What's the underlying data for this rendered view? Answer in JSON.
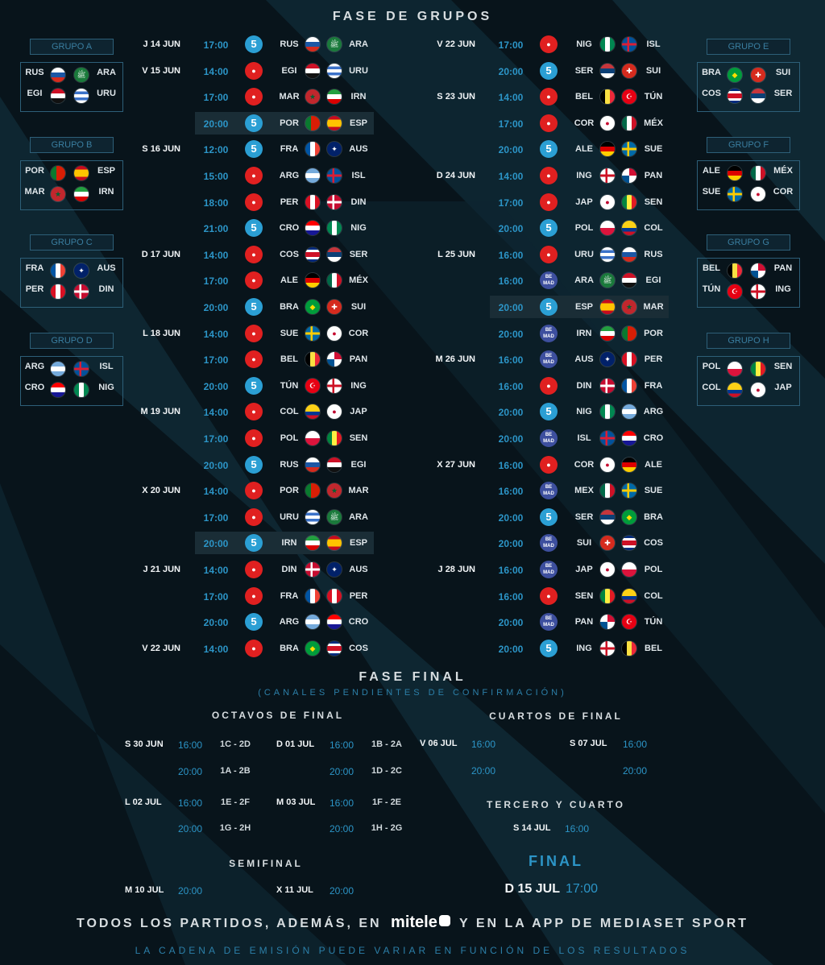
{
  "titles": {
    "group_stage": "FASE DE GRUPOS",
    "final_stage": "FASE FINAL",
    "final_note": "(CANALES PENDIENTES DE CONFIRMACIÓN)",
    "octavos": "OCTAVOS DE FINAL",
    "cuartos": "CUARTOS DE FINAL",
    "tercero": "TERCERO Y CUARTO",
    "semifinal": "SEMIFINAL",
    "final": "FINAL"
  },
  "footer": {
    "main_before": "TODOS LOS PARTIDOS, ADEMÁS, EN",
    "logo": "mitele",
    "main_after": "Y EN LA APP DE MEDIASET SPORT",
    "note": "LA CADENA DE EMISIÓN PUEDE VARIAR EN FUNCIÓN DE LOS RESULTADOS"
  },
  "channels": {
    "c5": "5",
    "cu": "●",
    "cd": "BE MAD"
  },
  "colors": {
    "accent": "#2c95c7",
    "channel_5": "#2b9fd4",
    "channel_cuatro": "#e02020",
    "channel_bemad": "#3d4f9e"
  },
  "groups": [
    {
      "label": "GRUPO A",
      "teams": [
        [
          "RUS",
          "ARA"
        ],
        [
          "EGI",
          "URU"
        ]
      ]
    },
    {
      "label": "GRUPO B",
      "teams": [
        [
          "POR",
          "ESP"
        ],
        [
          "MAR",
          "IRN"
        ]
      ]
    },
    {
      "label": "GRUPO C",
      "teams": [
        [
          "FRA",
          "AUS"
        ],
        [
          "PER",
          "DIN"
        ]
      ]
    },
    {
      "label": "GRUPO D",
      "teams": [
        [
          "ARG",
          "ISL"
        ],
        [
          "CRO",
          "NIG"
        ]
      ]
    },
    {
      "label": "GRUPO E",
      "teams": [
        [
          "BRA",
          "SUI"
        ],
        [
          "COS",
          "SER"
        ]
      ]
    },
    {
      "label": "GRUPO F",
      "teams": [
        [
          "ALE",
          "MÉX"
        ],
        [
          "SUE",
          "COR"
        ]
      ]
    },
    {
      "label": "GRUPO G",
      "teams": [
        [
          "BEL",
          "PAN"
        ],
        [
          "TÚN",
          "ING"
        ]
      ]
    },
    {
      "label": "GRUPO H",
      "teams": [
        [
          "POL",
          "SEN"
        ],
        [
          "COL",
          "JAP"
        ]
      ]
    }
  ],
  "matches_left": [
    {
      "day": "J 14 JUN",
      "time": "17:00",
      "ch": "c5",
      "home": "RUS",
      "away": "ARA",
      "hl": false
    },
    {
      "day": "V 15 JUN",
      "time": "14:00",
      "ch": "cu",
      "home": "EGI",
      "away": "URU",
      "hl": false
    },
    {
      "day": "",
      "time": "17:00",
      "ch": "cu",
      "home": "MAR",
      "away": "IRN",
      "hl": false
    },
    {
      "day": "",
      "time": "20:00",
      "ch": "c5",
      "home": "POR",
      "away": "ESP",
      "hl": true
    },
    {
      "day": "S 16 JUN",
      "time": "12:00",
      "ch": "c5",
      "home": "FRA",
      "away": "AUS",
      "hl": false
    },
    {
      "day": "",
      "time": "15:00",
      "ch": "cu",
      "home": "ARG",
      "away": "ISL",
      "hl": false
    },
    {
      "day": "",
      "time": "18:00",
      "ch": "cu",
      "home": "PER",
      "away": "DIN",
      "hl": false
    },
    {
      "day": "",
      "time": "21:00",
      "ch": "c5",
      "home": "CRO",
      "away": "NIG",
      "hl": false
    },
    {
      "day": "D 17 JUN",
      "time": "14:00",
      "ch": "cu",
      "home": "COS",
      "away": "SER",
      "hl": false
    },
    {
      "day": "",
      "time": "17:00",
      "ch": "cu",
      "home": "ALE",
      "away": "MÉX",
      "hl": false
    },
    {
      "day": "",
      "time": "20:00",
      "ch": "c5",
      "home": "BRA",
      "away": "SUI",
      "hl": false
    },
    {
      "day": "L 18 JUN",
      "time": "14:00",
      "ch": "cu",
      "home": "SUE",
      "away": "COR",
      "hl": false
    },
    {
      "day": "",
      "time": "17:00",
      "ch": "cu",
      "home": "BEL",
      "away": "PAN",
      "hl": false
    },
    {
      "day": "",
      "time": "20:00",
      "ch": "c5",
      "home": "TÚN",
      "away": "ING",
      "hl": false
    },
    {
      "day": "M 19 JUN",
      "time": "14:00",
      "ch": "cu",
      "home": "COL",
      "away": "JAP",
      "hl": false
    },
    {
      "day": "",
      "time": "17:00",
      "ch": "cu",
      "home": "POL",
      "away": "SEN",
      "hl": false
    },
    {
      "day": "",
      "time": "20:00",
      "ch": "c5",
      "home": "RUS",
      "away": "EGI",
      "hl": false
    },
    {
      "day": "X 20 JUN",
      "time": "14:00",
      "ch": "cu",
      "home": "POR",
      "away": "MAR",
      "hl": false
    },
    {
      "day": "",
      "time": "17:00",
      "ch": "cu",
      "home": "URU",
      "away": "ARA",
      "hl": false
    },
    {
      "day": "",
      "time": "20:00",
      "ch": "c5",
      "home": "IRN",
      "away": "ESP",
      "hl": true
    },
    {
      "day": "J 21 JUN",
      "time": "14:00",
      "ch": "cu",
      "home": "DIN",
      "away": "AUS",
      "hl": false
    },
    {
      "day": "",
      "time": "17:00",
      "ch": "cu",
      "home": "FRA",
      "away": "PER",
      "hl": false
    },
    {
      "day": "",
      "time": "20:00",
      "ch": "c5",
      "home": "ARG",
      "away": "CRO",
      "hl": false
    },
    {
      "day": "V 22 JUN",
      "time": "14:00",
      "ch": "cu",
      "home": "BRA",
      "away": "COS",
      "hl": false
    }
  ],
  "matches_right": [
    {
      "day": "V 22 JUN",
      "time": "17:00",
      "ch": "cu",
      "home": "NIG",
      "away": "ISL",
      "hl": false
    },
    {
      "day": "",
      "time": "20:00",
      "ch": "c5",
      "home": "SER",
      "away": "SUI",
      "hl": false
    },
    {
      "day": "S 23 JUN",
      "time": "14:00",
      "ch": "cu",
      "home": "BEL",
      "away": "TÚN",
      "hl": false
    },
    {
      "day": "",
      "time": "17:00",
      "ch": "cu",
      "home": "COR",
      "away": "MÉX",
      "hl": false
    },
    {
      "day": "",
      "time": "20:00",
      "ch": "c5",
      "home": "ALE",
      "away": "SUE",
      "hl": false
    },
    {
      "day": "D 24 JUN",
      "time": "14:00",
      "ch": "cu",
      "home": "ING",
      "away": "PAN",
      "hl": false
    },
    {
      "day": "",
      "time": "17:00",
      "ch": "cu",
      "home": "JAP",
      "away": "SEN",
      "hl": false
    },
    {
      "day": "",
      "time": "20:00",
      "ch": "c5",
      "home": "POL",
      "away": "COL",
      "hl": false
    },
    {
      "day": "L 25 JUN",
      "time": "16:00",
      "ch": "cu",
      "home": "URU",
      "away": "RUS",
      "hl": false
    },
    {
      "day": "",
      "time": "16:00",
      "ch": "cd",
      "home": "ARA",
      "away": "EGI",
      "hl": false
    },
    {
      "day": "",
      "time": "20:00",
      "ch": "c5",
      "home": "ESP",
      "away": "MAR",
      "hl": true
    },
    {
      "day": "",
      "time": "20:00",
      "ch": "cd",
      "home": "IRN",
      "away": "POR",
      "hl": false
    },
    {
      "day": "M 26 JUN",
      "time": "16:00",
      "ch": "cd",
      "home": "AUS",
      "away": "PER",
      "hl": false
    },
    {
      "day": "",
      "time": "16:00",
      "ch": "cu",
      "home": "DIN",
      "away": "FRA",
      "hl": false
    },
    {
      "day": "",
      "time": "20:00",
      "ch": "c5",
      "home": "NIG",
      "away": "ARG",
      "hl": false
    },
    {
      "day": "",
      "time": "20:00",
      "ch": "cd",
      "home": "ISL",
      "away": "CRO",
      "hl": false
    },
    {
      "day": "X 27 JUN",
      "time": "16:00",
      "ch": "cu",
      "home": "COR",
      "away": "ALE",
      "hl": false
    },
    {
      "day": "",
      "time": "16:00",
      "ch": "cd",
      "home": "MEX",
      "away": "SUE",
      "hl": false
    },
    {
      "day": "",
      "time": "20:00",
      "ch": "c5",
      "home": "SER",
      "away": "BRA",
      "hl": false
    },
    {
      "day": "",
      "time": "20:00",
      "ch": "cd",
      "home": "SUI",
      "away": "COS",
      "hl": false
    },
    {
      "day": "J 28 JUN",
      "time": "16:00",
      "ch": "cd",
      "home": "JAP",
      "away": "POL",
      "hl": false
    },
    {
      "day": "",
      "time": "16:00",
      "ch": "cu",
      "home": "SEN",
      "away": "COL",
      "hl": false
    },
    {
      "day": "",
      "time": "20:00",
      "ch": "cd",
      "home": "PAN",
      "away": "TÚN",
      "hl": false
    },
    {
      "day": "",
      "time": "20:00",
      "ch": "c5",
      "home": "ING",
      "away": "BEL",
      "hl": false
    }
  ],
  "flags": {
    "RUS": {
      "type": "h",
      "c": [
        "#ffffff",
        "#1c57a5",
        "#d52b1e"
      ]
    },
    "ARA": {
      "type": "s",
      "c": [
        "#1a7a3b"
      ],
      "sym": "ﷺ"
    },
    "EGI": {
      "type": "h",
      "c": [
        "#ce1126",
        "#ffffff",
        "#111111"
      ]
    },
    "URU": {
      "type": "h",
      "c": [
        "#ffffff",
        "#3b72c9",
        "#ffffff",
        "#3b72c9",
        "#ffffff"
      ]
    },
    "POR": {
      "type": "v2",
      "c": [
        "#0a7a2f",
        "#d81e05"
      ]
    },
    "ESP": {
      "type": "h",
      "c": [
        "#c60b1e",
        "#ffc400",
        "#ffc400",
        "#c60b1e"
      ]
    },
    "MAR": {
      "type": "s",
      "c": [
        "#c1272d"
      ],
      "sym": "★",
      "symc": "#006233"
    },
    "IRN": {
      "type": "h",
      "c": [
        "#239f40",
        "#ffffff",
        "#da0000"
      ]
    },
    "FRA": {
      "type": "v",
      "c": [
        "#0055a4",
        "#ffffff",
        "#ef4135"
      ]
    },
    "AUS": {
      "type": "s",
      "c": [
        "#012169"
      ],
      "sym": "✦",
      "symc": "#ffffff"
    },
    "PER": {
      "type": "v",
      "c": [
        "#d91023",
        "#ffffff",
        "#d91023"
      ]
    },
    "DIN": {
      "type": "cross",
      "c": [
        "#c60c30",
        "#ffffff"
      ]
    },
    "ARG": {
      "type": "h",
      "c": [
        "#75aadb",
        "#ffffff",
        "#75aadb"
      ]
    },
    "ISL": {
      "type": "cross",
      "c": [
        "#02529c",
        "#dc1e35"
      ]
    },
    "CRO": {
      "type": "h",
      "c": [
        "#ff0000",
        "#ffffff",
        "#171796"
      ]
    },
    "NIG": {
      "type": "v",
      "c": [
        "#008751",
        "#ffffff",
        "#008751"
      ]
    },
    "BRA": {
      "type": "s",
      "c": [
        "#009c3b"
      ],
      "sym": "◆",
      "symc": "#ffdf00"
    },
    "SUI": {
      "type": "s",
      "c": [
        "#d52b1e"
      ],
      "sym": "✚",
      "symc": "#ffffff"
    },
    "COS": {
      "type": "h",
      "c": [
        "#002b7f",
        "#ffffff",
        "#ce1126",
        "#ce1126",
        "#ffffff",
        "#002b7f"
      ]
    },
    "SER": {
      "type": "h",
      "c": [
        "#c6363c",
        "#0c4076",
        "#ffffff"
      ]
    },
    "ALE": {
      "type": "h",
      "c": [
        "#000000",
        "#dd0000",
        "#ffce00"
      ]
    },
    "MÉX": {
      "type": "v",
      "c": [
        "#006847",
        "#ffffff",
        "#ce1126"
      ]
    },
    "MEX": {
      "type": "v",
      "c": [
        "#006847",
        "#ffffff",
        "#ce1126"
      ]
    },
    "SUE": {
      "type": "cross",
      "c": [
        "#006aa7",
        "#fecc00"
      ]
    },
    "COR": {
      "type": "s",
      "c": [
        "#ffffff"
      ],
      "sym": "●",
      "symc": "#c60c30"
    },
    "BEL": {
      "type": "v",
      "c": [
        "#000000",
        "#fae042",
        "#ed2939"
      ]
    },
    "PAN": {
      "type": "q",
      "c": [
        "#ffffff",
        "#d21034",
        "#005293",
        "#ffffff"
      ]
    },
    "TÚN": {
      "type": "s",
      "c": [
        "#e70013"
      ],
      "sym": "☪",
      "symc": "#ffffff"
    },
    "ING": {
      "type": "cross",
      "c": [
        "#ffffff",
        "#ce1124"
      ]
    },
    "POL": {
      "type": "h",
      "c": [
        "#ffffff",
        "#dc143c"
      ]
    },
    "SEN": {
      "type": "v",
      "c": [
        "#00853f",
        "#fdef42",
        "#e31b23"
      ]
    },
    "COL": {
      "type": "h",
      "c": [
        "#fcd116",
        "#fcd116",
        "#003893",
        "#ce1126"
      ]
    },
    "JAP": {
      "type": "s",
      "c": [
        "#ffffff"
      ],
      "sym": "●",
      "symc": "#bc002d"
    }
  },
  "octavos": [
    {
      "day": "S 30 JUN",
      "time": "16:00",
      "match": "1C - 2D"
    },
    {
      "day": "",
      "time": "20:00",
      "match": "1A - 2B"
    },
    {
      "day": "L 02 JUL",
      "time": "16:00",
      "match": "1E - 2F"
    },
    {
      "day": "",
      "time": "20:00",
      "match": "1G - 2H"
    },
    {
      "day": "D 01 JUL",
      "time": "16:00",
      "match": "1B - 2A"
    },
    {
      "day": "",
      "time": "20:00",
      "match": "1D - 2C"
    },
    {
      "day": "M 03 JUL",
      "time": "16:00",
      "match": "1F - 2E"
    },
    {
      "day": "",
      "time": "20:00",
      "match": "1H - 2G"
    }
  ],
  "cuartos": [
    {
      "day": "V 06 JUL",
      "time": "16:00"
    },
    {
      "day": "",
      "time": "20:00"
    },
    {
      "day": "S 07 JUL",
      "time": "16:00"
    },
    {
      "day": "",
      "time": "20:00"
    }
  ],
  "tercero": {
    "day": "S 14 JUL",
    "time": "16:00"
  },
  "semis": [
    {
      "day": "M 10 JUL",
      "time": "20:00"
    },
    {
      "day": "X 11 JUL",
      "time": "20:00"
    }
  ],
  "final": {
    "day": "D 15 JUL",
    "time": "17:00"
  }
}
